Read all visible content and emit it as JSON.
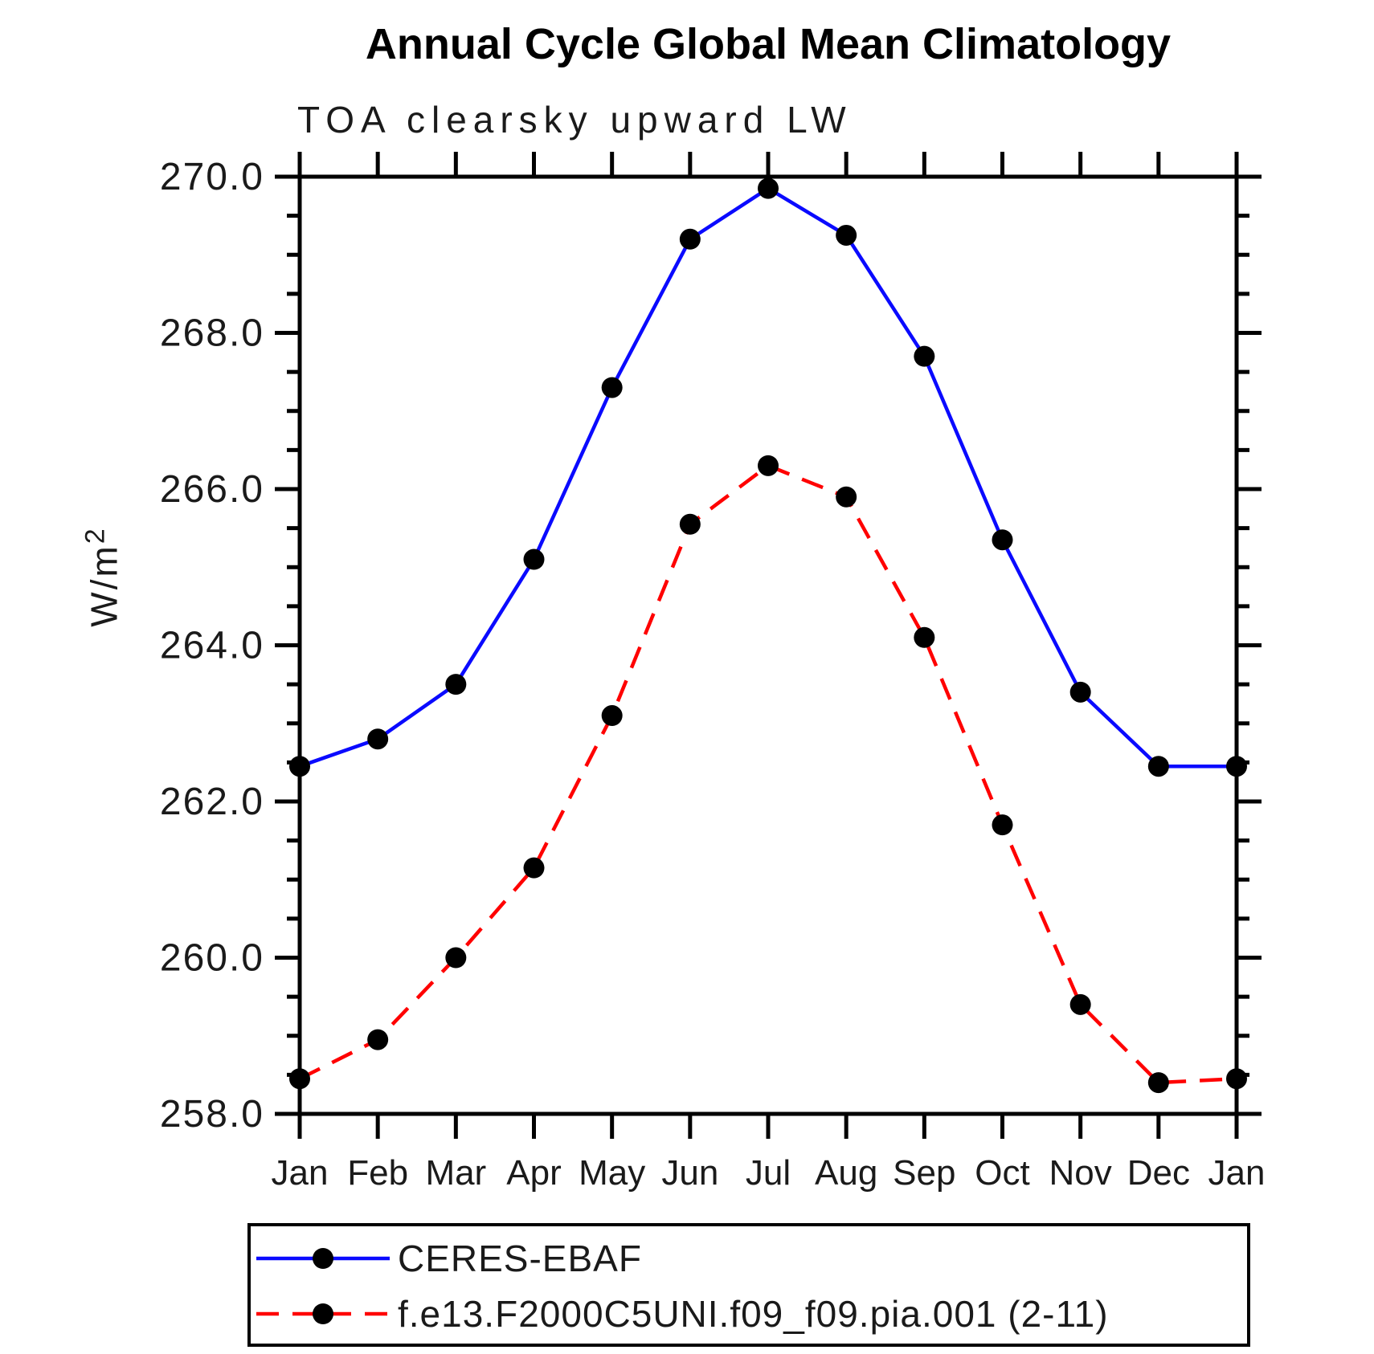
{
  "chart_data": {
    "type": "line",
    "title": "Annual Cycle Global Mean Climatology",
    "subtitle": "TOA clearsky upward LW",
    "ylabel": "W/m²",
    "ylabel_parts": {
      "base": "W/m",
      "exp": "2"
    },
    "categories": [
      "Jan",
      "Feb",
      "Mar",
      "Apr",
      "May",
      "Jun",
      "Jul",
      "Aug",
      "Sep",
      "Oct",
      "Nov",
      "Dec",
      "Jan"
    ],
    "ylim": [
      258.0,
      270.0
    ],
    "ytick_labels": [
      "258.0",
      "260.0",
      "262.0",
      "264.0",
      "266.0",
      "268.0",
      "270.0"
    ],
    "ytick_major_step": 2.0,
    "ytick_minor_step": 0.5,
    "grid": false,
    "legend_position": "bottom",
    "axis_color": "#000000",
    "series": [
      {
        "name": "CERES-EBAF",
        "color": "#0a0aff",
        "line_style": "solid",
        "marker": "filled-circle",
        "marker_color": "#000000",
        "values": [
          262.45,
          262.8,
          263.5,
          265.1,
          267.3,
          269.2,
          269.85,
          269.25,
          267.7,
          265.35,
          263.4,
          262.45,
          262.45
        ]
      },
      {
        "name": "f.e13.F2000C5UNI.f09_f09.pia.001 (2-11)",
        "color": "#ff0000",
        "line_style": "dashed",
        "marker": "filled-circle",
        "marker_color": "#000000",
        "values": [
          258.45,
          258.95,
          260.0,
          261.15,
          263.1,
          265.55,
          266.3,
          265.9,
          264.1,
          261.7,
          259.4,
          258.4,
          258.45
        ]
      }
    ]
  }
}
